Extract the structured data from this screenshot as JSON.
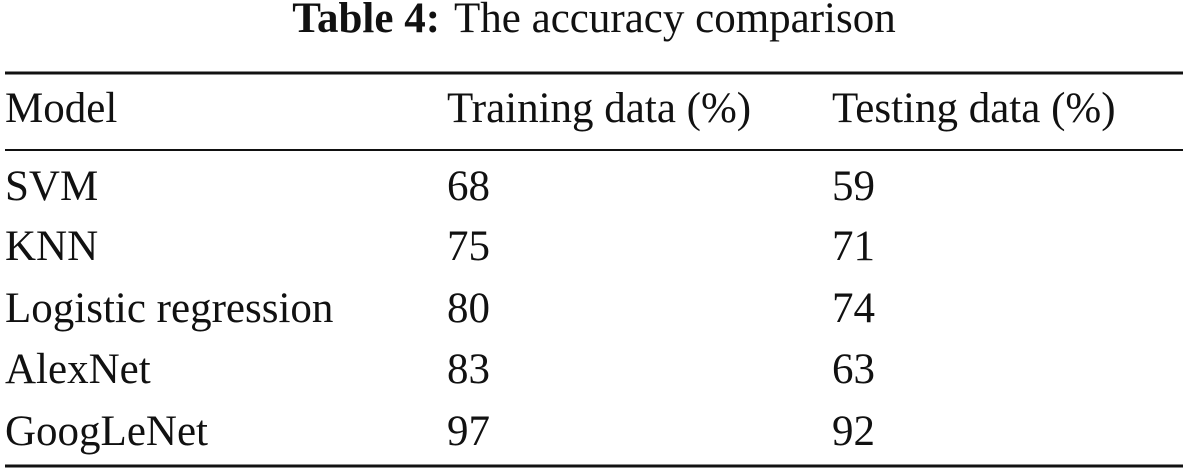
{
  "caption": {
    "label": "Table 4:",
    "title": "The accuracy comparison"
  },
  "table": {
    "header": [
      "Model",
      "Training data (%)",
      "Testing data (%)"
    ],
    "rows": [
      [
        "SVM",
        68,
        59
      ],
      [
        "KNN",
        75,
        71
      ],
      [
        "Logistic regression",
        80,
        74
      ],
      [
        "AlexNet",
        83,
        63
      ],
      [
        "GoogLeNet",
        97,
        92
      ]
    ]
  }
}
